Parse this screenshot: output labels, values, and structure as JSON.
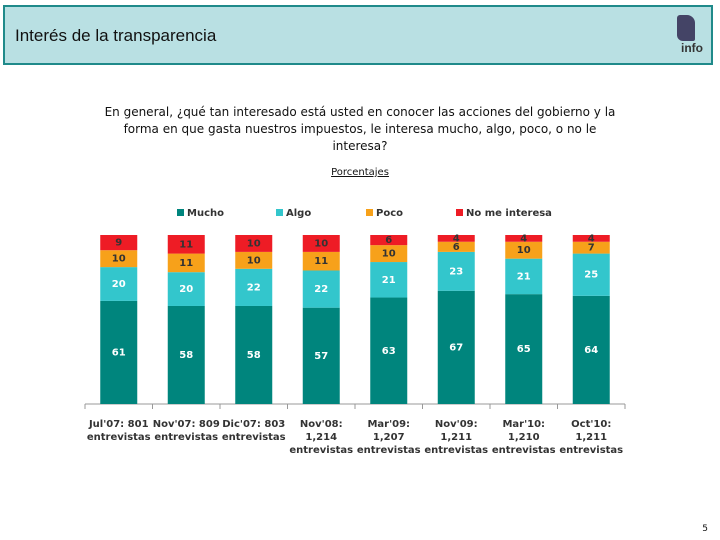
{
  "header": {
    "title": "Interés de la transparencia",
    "logo": "info"
  },
  "question": "En general, ¿qué tan interesado está usted en conocer las acciones del gobierno y la forma en que gasta nuestros impuestos, le interesa mucho, algo, poco, o no le interesa?",
  "subtitle": "Porcentajes",
  "chart_data": {
    "type": "stacked-bar",
    "categories": [
      "Jul'07: 801 entrevistas",
      "Nov'07: 809 entrevistas",
      "Dic'07: 803 entrevistas",
      "Nov'08: 1,214 entrevistas",
      "Mar'09: 1,207 entrevistas",
      "Nov'09: 1,211 entrevistas",
      "Mar'10: 1,210 entrevistas",
      "Oct'10: 1,211 entrevistas"
    ],
    "series": [
      {
        "name": "Mucho",
        "color": "#00857d",
        "values": [
          61,
          58,
          58,
          57,
          63,
          67,
          65,
          64
        ]
      },
      {
        "name": "Algo",
        "color": "#33c6cc",
        "values": [
          20,
          20,
          22,
          22,
          21,
          23,
          21,
          25
        ]
      },
      {
        "name": "Poco",
        "color": "#f7a11a",
        "values": [
          10,
          11,
          10,
          11,
          10,
          6,
          10,
          7
        ]
      },
      {
        "name": "No me interesa",
        "color": "#ee1c25",
        "values": [
          9,
          11,
          10,
          10,
          6,
          4,
          4,
          4
        ]
      }
    ],
    "legend": "top"
  },
  "page_number": "5"
}
